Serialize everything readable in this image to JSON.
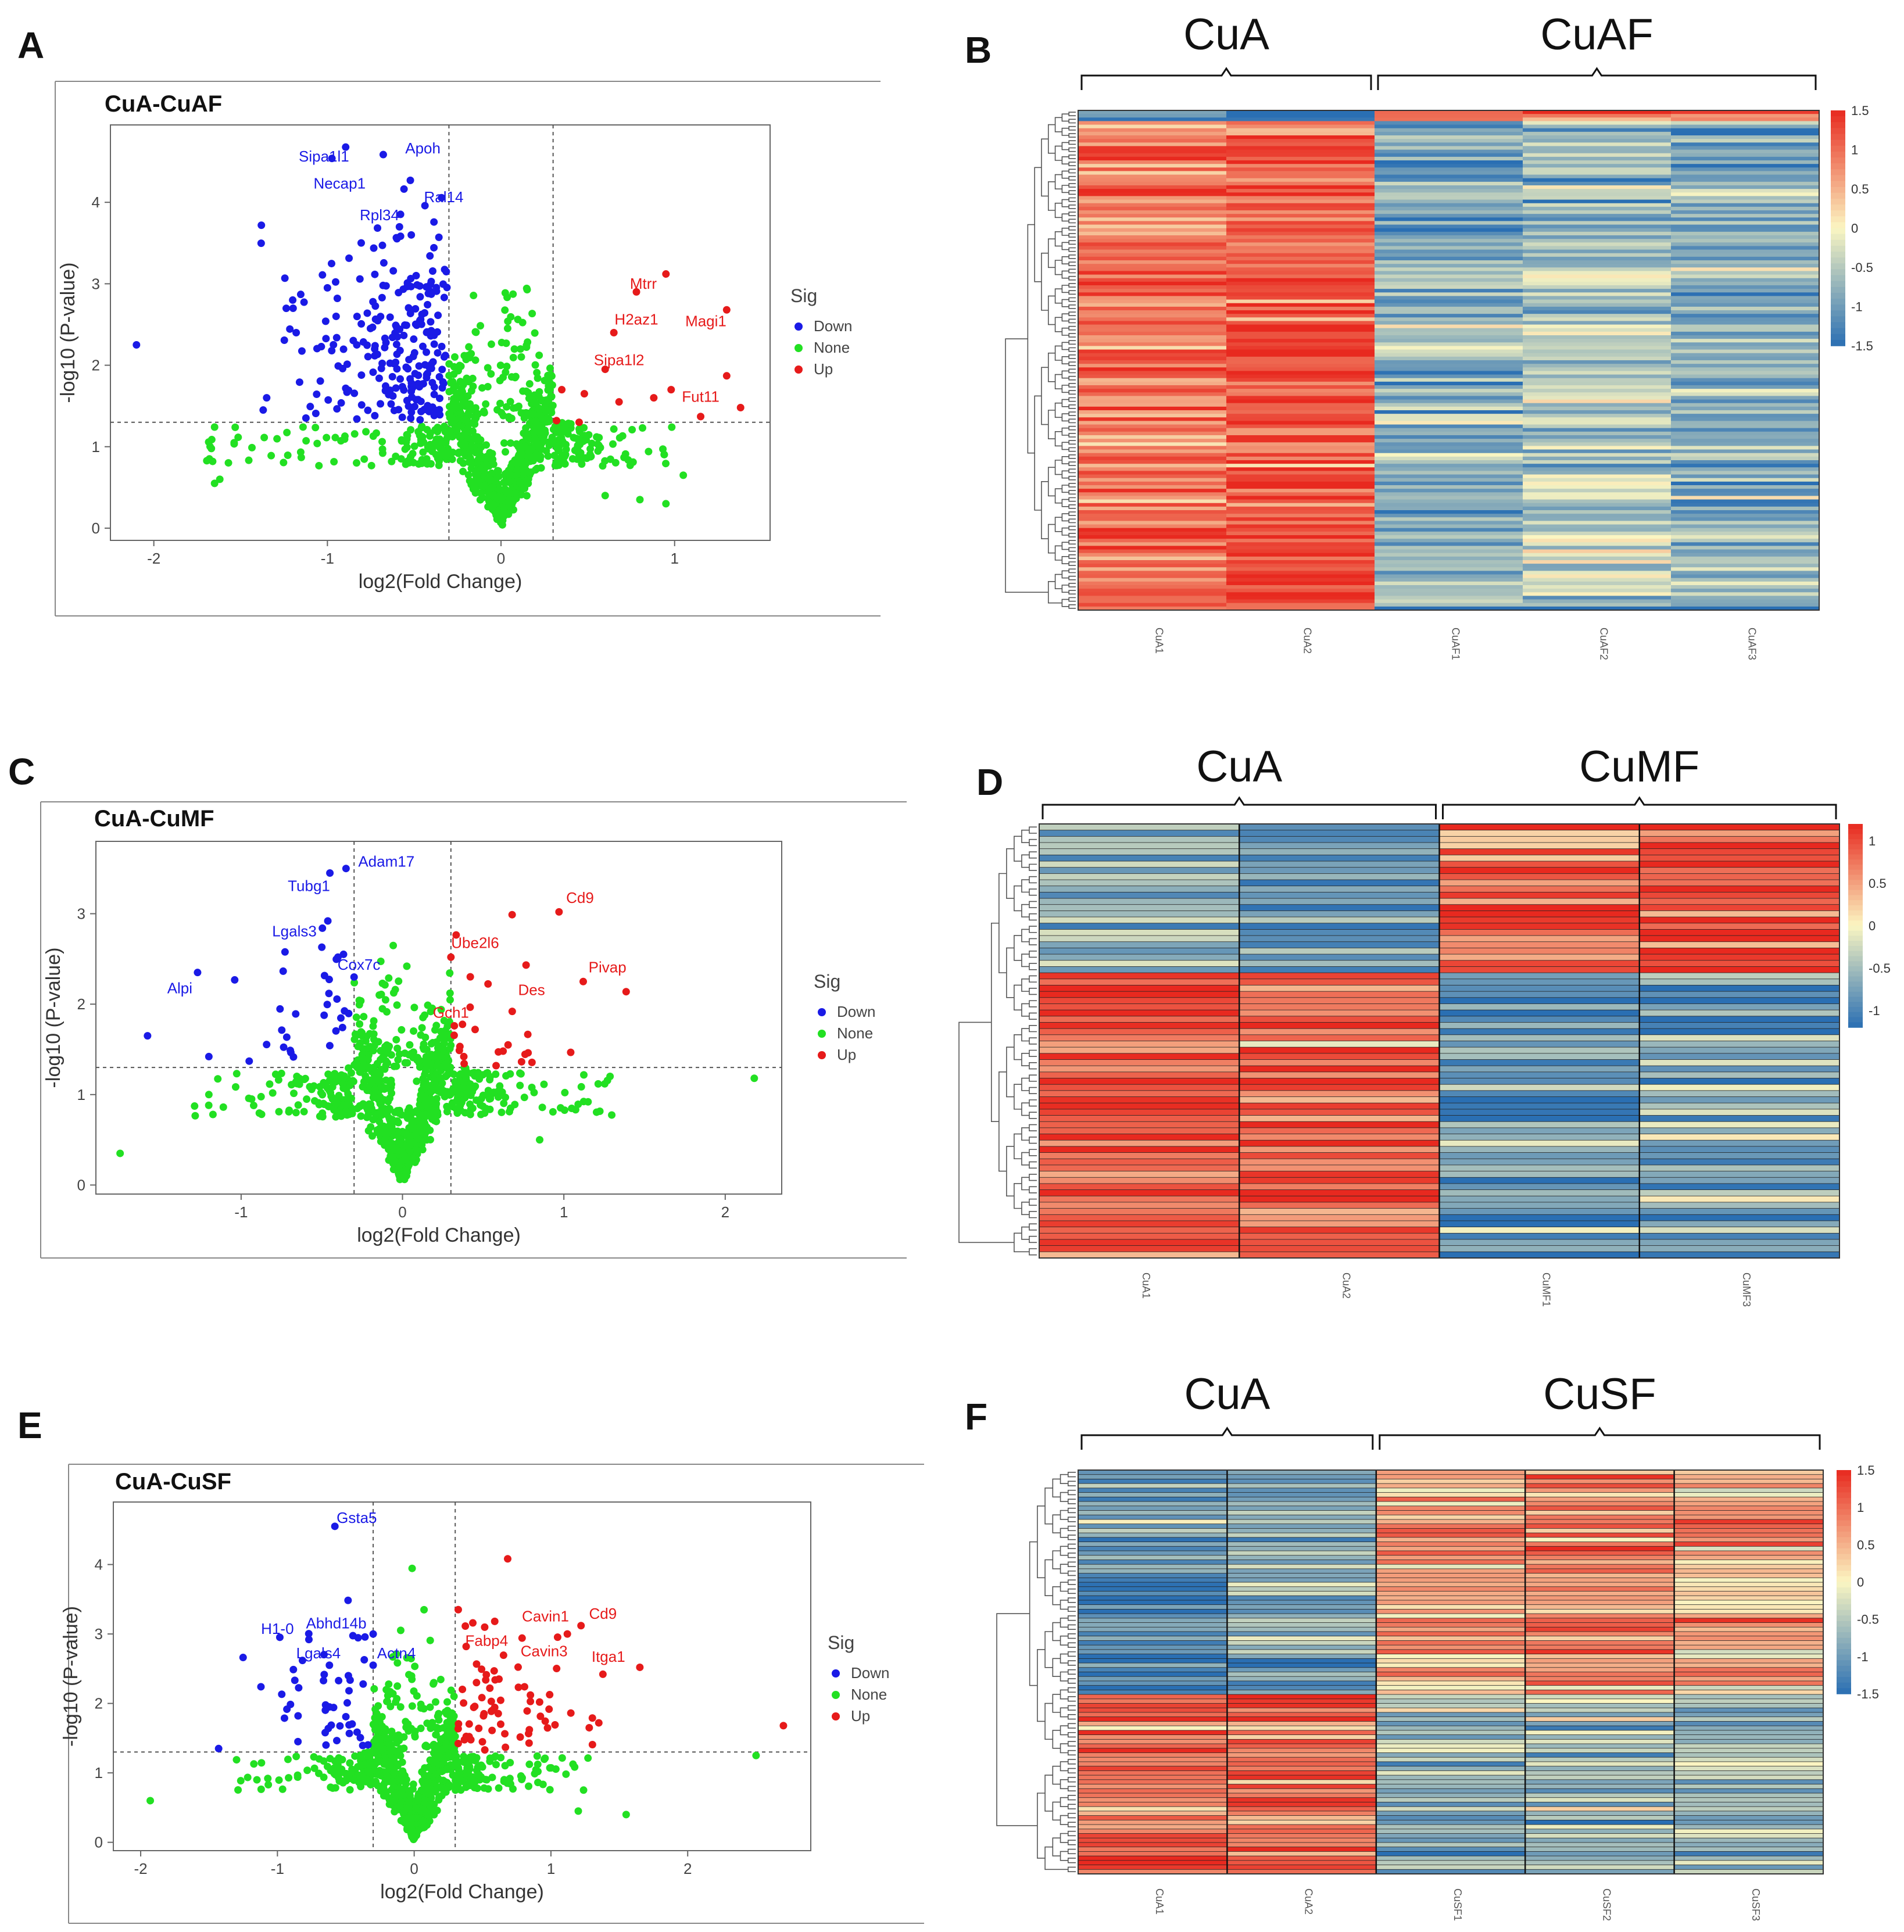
{
  "colors": {
    "down": "#1a1ae6",
    "none": "#22e022",
    "up": "#e61a1a",
    "heat_low": "#2a6fb3",
    "heat_mid": "#fbf6c2",
    "heat_high": "#e8291f"
  },
  "chart_data": [
    {
      "panel": "A",
      "type": "scatter",
      "title": "CuA-CuAF",
      "xlabel": "log2(Fold Change)",
      "ylabel": "-log10 (P-value)",
      "xlim": [
        -2.25,
        1.55
      ],
      "ylim": [
        -0.15,
        4.95
      ],
      "xticks": [
        -2,
        -1,
        0,
        1
      ],
      "yticks": [
        0,
        1,
        2,
        3,
        4
      ],
      "fc_threshold": 0.3,
      "p_threshold": 1.3,
      "legend": {
        "title": "Sig",
        "entries": [
          "Down",
          "None",
          "Up"
        ],
        "position": "right"
      },
      "cloud": {
        "seed": 11,
        "xmin": -1.7,
        "xmax": 1.0,
        "n_none": 800,
        "n_down": 240,
        "n_up": 0
      },
      "down_extra": [
        [
          -2.1,
          2.25
        ],
        [
          -1.35,
          1.6
        ],
        [
          -1.37,
          1.45
        ],
        [
          -1.18,
          2.4
        ],
        [
          -1.2,
          2.8
        ],
        [
          -1.0,
          2.95
        ],
        [
          -0.95,
          2.6
        ]
      ],
      "up_extra": [
        [
          0.95,
          3.12
        ],
        [
          0.78,
          2.9
        ],
        [
          0.65,
          2.4
        ],
        [
          0.6,
          1.95
        ],
        [
          1.3,
          2.68
        ],
        [
          1.3,
          1.87
        ],
        [
          0.35,
          1.7
        ],
        [
          0.48,
          1.65
        ],
        [
          0.68,
          1.55
        ],
        [
          0.88,
          1.6
        ],
        [
          0.98,
          1.7
        ],
        [
          1.15,
          1.37
        ],
        [
          1.38,
          1.48
        ],
        [
          0.32,
          1.32
        ],
        [
          0.45,
          1.3
        ]
      ],
      "none_extra": [
        [
          -1.68,
          0.85
        ],
        [
          -1.65,
          0.55
        ],
        [
          -1.62,
          0.6
        ],
        [
          1.05,
          0.65
        ],
        [
          0.95,
          0.3
        ],
        [
          0.6,
          0.4
        ],
        [
          0.8,
          0.35
        ]
      ],
      "labels": [
        {
          "text": "Sipa1l1",
          "x": -1.02,
          "y": 4.5,
          "sig": "down"
        },
        {
          "text": "Apoh",
          "x": -0.45,
          "y": 4.6,
          "sig": "down"
        },
        {
          "text": "Necap1",
          "x": -0.93,
          "y": 4.17,
          "sig": "down"
        },
        {
          "text": "Ral14",
          "x": -0.33,
          "y": 4.0,
          "sig": "down"
        },
        {
          "text": "Rpl34",
          "x": -0.7,
          "y": 3.78,
          "sig": "down"
        },
        {
          "text": "Mtrr",
          "x": 0.82,
          "y": 2.94,
          "sig": "up"
        },
        {
          "text": "H2az1",
          "x": 0.78,
          "y": 2.5,
          "sig": "up"
        },
        {
          "text": "Magi1",
          "x": 1.18,
          "y": 2.48,
          "sig": "up"
        },
        {
          "text": "Sipa1l2",
          "x": 0.68,
          "y": 2.0,
          "sig": "up"
        },
        {
          "text": "Fut11",
          "x": 1.15,
          "y": 1.55,
          "sig": "up"
        }
      ]
    },
    {
      "panel": "C",
      "type": "scatter",
      "title": "CuA-CuMF",
      "xlabel": "log2(Fold Change)",
      "ylabel": "-log10 (P-value)",
      "xlim": [
        -1.9,
        2.35
      ],
      "ylim": [
        -0.1,
        3.8
      ],
      "xticks": [
        -1,
        0,
        1,
        2
      ],
      "yticks": [
        0,
        1,
        2,
        3
      ],
      "fc_threshold": 0.3,
      "p_threshold": 1.3,
      "legend": {
        "title": "Sig",
        "entries": [
          "Down",
          "None",
          "Up"
        ],
        "position": "right"
      },
      "cloud": {
        "seed": 23,
        "xmin": -1.3,
        "xmax": 1.3,
        "n_none": 800,
        "n_down": 28,
        "n_up": 22
      },
      "down_extra": [
        [
          -1.27,
          2.35
        ],
        [
          -1.58,
          1.65
        ],
        [
          -1.2,
          1.42
        ],
        [
          -0.95,
          1.37
        ],
        [
          -0.45,
          3.45
        ],
        [
          -0.35,
          3.5
        ],
        [
          -0.5,
          2.63
        ],
        [
          -0.4,
          2.52
        ],
        [
          -0.3,
          2.3
        ]
      ],
      "up_extra": [
        [
          0.97,
          3.02
        ],
        [
          1.12,
          2.25
        ],
        [
          0.3,
          2.52
        ],
        [
          0.68,
          1.92
        ],
        [
          0.45,
          1.72
        ],
        [
          0.38,
          1.42
        ],
        [
          0.58,
          1.32
        ]
      ],
      "none_extra": [
        [
          -1.75,
          0.35
        ],
        [
          2.18,
          1.18
        ],
        [
          1.15,
          0.92
        ],
        [
          -1.2,
          1.0
        ],
        [
          0.85,
          0.5
        ]
      ],
      "labels": [
        {
          "text": "Adam17",
          "x": -0.1,
          "y": 3.52,
          "sig": "down"
        },
        {
          "text": "Tubg1",
          "x": -0.58,
          "y": 3.25,
          "sig": "down"
        },
        {
          "text": "Lgals3",
          "x": -0.67,
          "y": 2.75,
          "sig": "down"
        },
        {
          "text": "Cox7c",
          "x": -0.27,
          "y": 2.38,
          "sig": "down"
        },
        {
          "text": "Alpi",
          "x": -1.38,
          "y": 2.12,
          "sig": "down"
        },
        {
          "text": "Cd9",
          "x": 1.1,
          "y": 3.12,
          "sig": "up"
        },
        {
          "text": "Ube2l6",
          "x": 0.45,
          "y": 2.62,
          "sig": "up"
        },
        {
          "text": "Pivap",
          "x": 1.27,
          "y": 2.35,
          "sig": "up"
        },
        {
          "text": "Des",
          "x": 0.8,
          "y": 2.1,
          "sig": "up"
        },
        {
          "text": "Gch1",
          "x": 0.3,
          "y": 1.85,
          "sig": "up"
        }
      ]
    },
    {
      "panel": "E",
      "type": "scatter",
      "title": "CuA-CuSF",
      "xlabel": "log2(Fold Change)",
      "ylabel": "-log10 (P-value)",
      "xlim": [
        -2.2,
        2.9
      ],
      "ylim": [
        -0.12,
        4.9
      ],
      "xticks": [
        -2,
        -1,
        0,
        1,
        2
      ],
      "yticks": [
        0,
        1,
        2,
        3,
        4
      ],
      "fc_threshold": 0.3,
      "p_threshold": 1.3,
      "legend": {
        "title": "Sig",
        "entries": [
          "Down",
          "None",
          "Up"
        ],
        "position": "right"
      },
      "cloud": {
        "seed": 37,
        "xmin": -1.3,
        "xmax": 1.3,
        "n_none": 820,
        "n_down": 45,
        "n_up": 65
      },
      "down_extra": [
        [
          -0.58,
          4.55
        ],
        [
          -1.43,
          1.35
        ],
        [
          -0.77,
          2.92
        ],
        [
          -0.3,
          3.0
        ],
        [
          -0.62,
          2.55
        ],
        [
          -0.3,
          2.55
        ],
        [
          -0.85,
          1.45
        ]
      ],
      "up_extra": [
        [
          1.22,
          3.12
        ],
        [
          1.12,
          3.0
        ],
        [
          1.65,
          2.52
        ],
        [
          1.38,
          2.42
        ],
        [
          0.38,
          2.82
        ],
        [
          2.7,
          1.68
        ],
        [
          1.35,
          1.72
        ],
        [
          1.28,
          1.65
        ],
        [
          0.85,
          2.12
        ],
        [
          0.62,
          2.35
        ]
      ],
      "none_extra": [
        [
          -1.93,
          0.6
        ],
        [
          2.5,
          1.25
        ],
        [
          1.55,
          0.4
        ],
        [
          1.2,
          0.45
        ],
        [
          -1.15,
          0.9
        ]
      ],
      "labels": [
        {
          "text": "Gsta5",
          "x": -0.42,
          "y": 4.6,
          "sig": "down"
        },
        {
          "text": "H1-0",
          "x": -1.0,
          "y": 3.0,
          "sig": "down"
        },
        {
          "text": "Abhd14b",
          "x": -0.57,
          "y": 3.08,
          "sig": "down"
        },
        {
          "text": "Lgals4",
          "x": -0.7,
          "y": 2.65,
          "sig": "down"
        },
        {
          "text": "Actn4",
          "x": -0.13,
          "y": 2.65,
          "sig": "down"
        },
        {
          "text": "Cavin1",
          "x": 0.96,
          "y": 3.18,
          "sig": "up"
        },
        {
          "text": "Cd9",
          "x": 1.38,
          "y": 3.22,
          "sig": "up"
        },
        {
          "text": "Fabp4",
          "x": 0.53,
          "y": 2.83,
          "sig": "up"
        },
        {
          "text": "Cavin3",
          "x": 0.95,
          "y": 2.68,
          "sig": "up"
        },
        {
          "text": "Itga1",
          "x": 1.42,
          "y": 2.6,
          "sig": "up"
        }
      ]
    },
    {
      "panel": "B",
      "type": "heatmap",
      "groups": [
        {
          "name": "CuA",
          "span": 2
        },
        {
          "name": "CuAF",
          "span": 3
        }
      ],
      "columns": [
        "CuA1",
        "CuA2",
        "CuAF1",
        "CuAF2",
        "CuAF3"
      ],
      "rows": 140,
      "seed": 5,
      "color_scale": {
        "min": -1.5,
        "max": 1.5,
        "ticks": [
          "1.5",
          "1",
          "0.5",
          "0",
          "-0.5",
          "-1",
          "-1.5"
        ]
      },
      "blocks": [
        {
          "fraction": 0.02,
          "means": [
            -1.2,
            -1.3,
            1.0,
            1.1,
            1.0
          ]
        },
        {
          "fraction": 0.98,
          "means": [
            0.9,
            1.2,
            -0.8,
            -0.5,
            -0.75
          ]
        }
      ],
      "grid_lines": false
    },
    {
      "panel": "D",
      "type": "heatmap",
      "groups": [
        {
          "name": "CuA",
          "span": 2
        },
        {
          "name": "CuMF",
          "span": 2
        }
      ],
      "columns": [
        "CuA1",
        "CuA2",
        "CuMF1",
        "CuMF3"
      ],
      "rows": 70,
      "seed": 9,
      "color_scale": {
        "min": -1.2,
        "max": 1.2,
        "ticks": [
          "1",
          "0.5",
          "0",
          "-0.5",
          "-1"
        ]
      },
      "blocks": [
        {
          "fraction": 0.34,
          "means": [
            -0.65,
            -0.9,
            0.8,
            0.95
          ]
        },
        {
          "fraction": 0.66,
          "means": [
            0.9,
            0.85,
            -0.8,
            -0.7
          ]
        }
      ],
      "grid_lines": true
    },
    {
      "panel": "F",
      "type": "heatmap",
      "groups": [
        {
          "name": "CuA",
          "span": 2
        },
        {
          "name": "CuSF",
          "span": 3
        }
      ],
      "columns": [
        "CuA1",
        "CuA2",
        "CuSF1",
        "CuSF2",
        "CuSF3"
      ],
      "rows": 90,
      "seed": 17,
      "color_scale": {
        "min": -1.5,
        "max": 1.5,
        "ticks": [
          "1.5",
          "1",
          "0.5",
          "0",
          "-0.5",
          "-1",
          "-1.5"
        ]
      },
      "blocks": [
        {
          "fraction": 0.56,
          "means": [
            -1.1,
            -0.85,
            0.45,
            0.75,
            0.45
          ]
        },
        {
          "fraction": 0.44,
          "means": [
            0.95,
            0.9,
            -0.7,
            -0.6,
            -0.65
          ]
        }
      ],
      "grid_lines": true
    }
  ]
}
